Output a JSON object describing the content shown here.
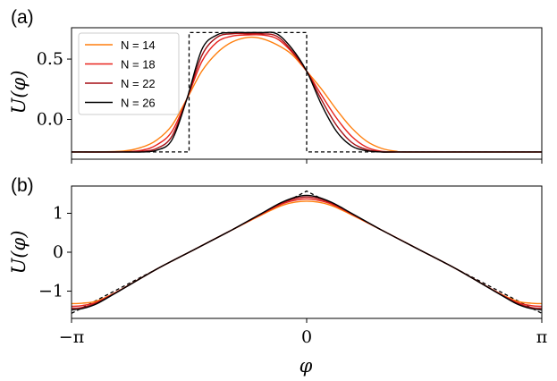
{
  "chart_data": [
    {
      "type": "line",
      "panel_label": "(a)",
      "xlabel": "",
      "ylabel": "U(φ)",
      "x_domain": [
        -3.14159,
        3.14159
      ],
      "ylim": [
        -0.33,
        0.76
      ],
      "yticks": [
        0.0,
        0.5
      ],
      "ytick_labels": [
        "0.0",
        "0.5"
      ],
      "xticks": [
        -3.14159,
        0,
        3.14159
      ],
      "xtick_labels": [
        "",
        "",
        ""
      ],
      "grid": false,
      "legend_placement": "top-left",
      "target": {
        "style": "dashed",
        "color": "#000000",
        "x": [
          -3.14159,
          -1.571,
          -1.571,
          0,
          0,
          3.14159
        ],
        "y": [
          -0.27,
          -0.27,
          0.72,
          0.72,
          -0.27,
          -0.27
        ]
      },
      "series": [
        {
          "name": "N = 14",
          "color": "#ff7f0e",
          "x": [
            -3.1416,
            -2.5,
            -2.2,
            -2.0,
            -1.8,
            -1.6,
            -1.4,
            -1.2,
            -1.0,
            -0.785,
            -0.6,
            -0.4,
            -0.2,
            0,
            0.2,
            0.4,
            0.6,
            0.8,
            1.0,
            1.2,
            1.4,
            3.1416
          ],
          "y": [
            -0.27,
            -0.265,
            -0.23,
            -0.17,
            -0.05,
            0.17,
            0.4,
            0.55,
            0.64,
            0.68,
            0.67,
            0.62,
            0.54,
            0.4,
            0.25,
            0.08,
            -0.07,
            -0.18,
            -0.24,
            -0.265,
            -0.27,
            -0.27
          ]
        },
        {
          "name": "N = 18",
          "color": "#e8231d",
          "x": [
            -3.1416,
            -2.5,
            -2.2,
            -2.0,
            -1.8,
            -1.6,
            -1.4,
            -1.2,
            -1.0,
            -0.785,
            -0.6,
            -0.4,
            -0.2,
            0,
            0.2,
            0.4,
            0.6,
            0.8,
            1.0,
            1.2,
            1.4,
            3.1416
          ],
          "y": [
            -0.27,
            -0.27,
            -0.255,
            -0.21,
            -0.1,
            0.17,
            0.48,
            0.64,
            0.69,
            0.7,
            0.7,
            0.67,
            0.56,
            0.4,
            0.2,
            0.01,
            -0.14,
            -0.23,
            -0.265,
            -0.27,
            -0.27,
            -0.27
          ]
        },
        {
          "name": "N = 22",
          "color": "#a50f15",
          "x": [
            -3.1416,
            -2.5,
            -2.2,
            -2.0,
            -1.8,
            -1.6,
            -1.4,
            -1.2,
            -1.0,
            -0.785,
            -0.6,
            -0.4,
            -0.2,
            0,
            0.2,
            0.4,
            0.6,
            0.8,
            1.0,
            1.2,
            1.4,
            3.1416
          ],
          "y": [
            -0.27,
            -0.27,
            -0.265,
            -0.24,
            -0.14,
            0.17,
            0.53,
            0.68,
            0.71,
            0.71,
            0.71,
            0.69,
            0.57,
            0.4,
            0.16,
            -0.05,
            -0.19,
            -0.25,
            -0.27,
            -0.27,
            -0.27,
            -0.27
          ]
        },
        {
          "name": "N = 26",
          "color": "#000000",
          "x": [
            -3.1416,
            -2.5,
            -2.2,
            -2.0,
            -1.8,
            -1.6,
            -1.4,
            -1.2,
            -1.0,
            -0.785,
            -0.6,
            -0.4,
            -0.2,
            0,
            0.2,
            0.4,
            0.6,
            0.8,
            1.0,
            1.2,
            1.4,
            3.1416
          ],
          "y": [
            -0.27,
            -0.27,
            -0.27,
            -0.255,
            -0.17,
            0.17,
            0.58,
            0.7,
            0.72,
            0.72,
            0.72,
            0.71,
            0.59,
            0.4,
            0.12,
            -0.1,
            -0.22,
            -0.26,
            -0.27,
            -0.27,
            -0.27,
            -0.27
          ]
        }
      ]
    },
    {
      "type": "line",
      "panel_label": "(b)",
      "xlabel": "φ",
      "ylabel": "U(φ)",
      "x_domain": [
        -3.14159,
        3.14159
      ],
      "ylim": [
        -1.7,
        1.7
      ],
      "yticks": [
        -1,
        0,
        1
      ],
      "ytick_labels": [
        "−1",
        "0",
        "1"
      ],
      "xticks": [
        -3.14159,
        0,
        3.14159
      ],
      "xtick_labels": [
        "−π",
        "0",
        "π"
      ],
      "grid": false,
      "target": {
        "style": "dashed",
        "color": "#000000",
        "x": [
          -3.14159,
          0,
          3.14159
        ],
        "y": [
          -1.57,
          1.57,
          -1.57
        ]
      },
      "series": [
        {
          "name": "N = 14",
          "color": "#ff7f0e",
          "x": [
            -3.1416,
            -3.0,
            -2.8,
            -2.5,
            -2.0,
            -1.5,
            -1.0,
            -0.6,
            -0.3,
            0,
            0.3,
            0.6,
            1.0,
            1.5,
            2.0,
            2.5,
            2.8,
            3.0,
            3.1416
          ],
          "y": [
            -1.32,
            -1.31,
            -1.25,
            -0.98,
            -0.43,
            0.07,
            0.57,
            0.96,
            1.22,
            1.31,
            1.22,
            0.96,
            0.57,
            0.07,
            -0.43,
            -0.98,
            -1.25,
            -1.31,
            -1.32
          ]
        },
        {
          "name": "N = 18",
          "color": "#e8231d",
          "x": [
            -3.1416,
            -3.0,
            -2.8,
            -2.5,
            -2.0,
            -1.5,
            -1.0,
            -0.6,
            -0.3,
            0,
            0.3,
            0.6,
            1.0,
            1.5,
            2.0,
            2.5,
            2.8,
            3.0,
            3.1416
          ],
          "y": [
            -1.39,
            -1.37,
            -1.28,
            -0.98,
            -0.43,
            0.07,
            0.57,
            0.98,
            1.26,
            1.37,
            1.26,
            0.98,
            0.57,
            0.07,
            -0.43,
            -0.98,
            -1.28,
            -1.37,
            -1.39
          ]
        },
        {
          "name": "N = 22",
          "color": "#a50f15",
          "x": [
            -3.1416,
            -3.0,
            -2.8,
            -2.5,
            -2.0,
            -1.5,
            -1.0,
            -0.6,
            -0.3,
            0,
            0.3,
            0.6,
            1.0,
            1.5,
            2.0,
            2.5,
            2.8,
            3.0,
            3.1416
          ],
          "y": [
            -1.44,
            -1.42,
            -1.3,
            -0.99,
            -0.43,
            0.07,
            0.57,
            0.99,
            1.29,
            1.42,
            1.29,
            0.99,
            0.57,
            0.07,
            -0.43,
            -0.99,
            -1.3,
            -1.42,
            -1.44
          ]
        },
        {
          "name": "N = 26",
          "color": "#000000",
          "x": [
            -3.1416,
            -3.0,
            -2.8,
            -2.5,
            -2.0,
            -1.5,
            -1.0,
            -0.6,
            -0.3,
            0,
            0.3,
            0.6,
            1.0,
            1.5,
            2.0,
            2.5,
            2.8,
            3.0,
            3.1416
          ],
          "y": [
            -1.48,
            -1.45,
            -1.32,
            -0.99,
            -0.43,
            0.07,
            0.57,
            1.0,
            1.31,
            1.46,
            1.31,
            1.0,
            0.57,
            0.07,
            -0.43,
            -0.99,
            -1.32,
            -1.45,
            -1.48
          ]
        }
      ]
    }
  ]
}
